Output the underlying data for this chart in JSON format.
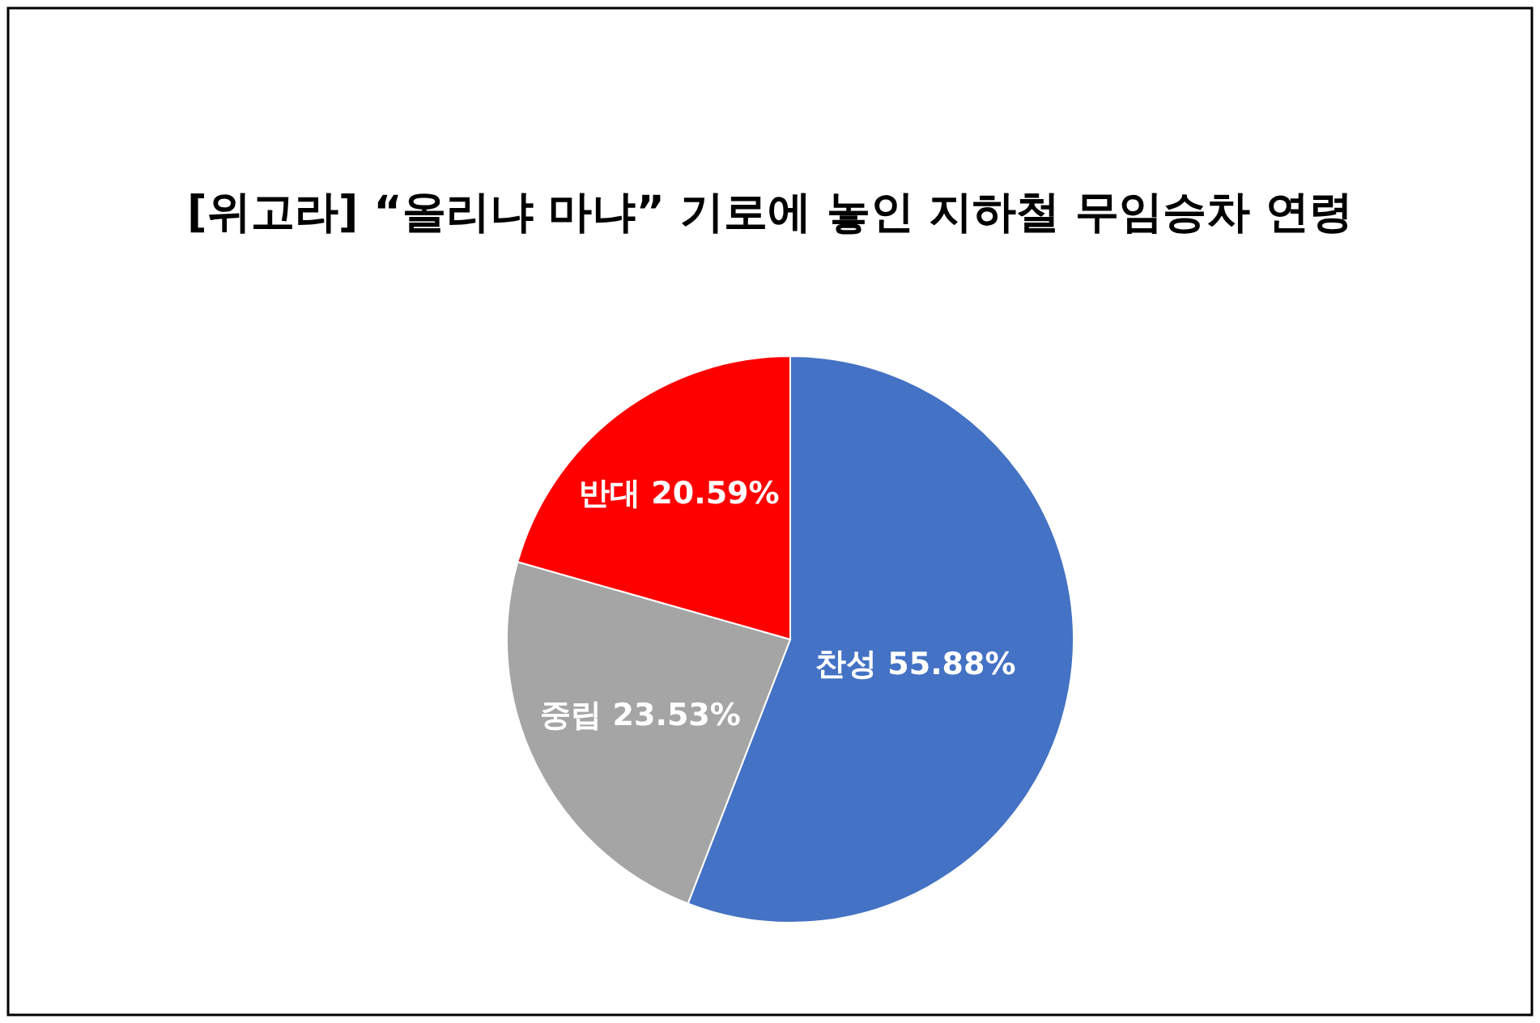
{
  "chart_data": {
    "type": "pie",
    "title": "[위고라]  “올리냐 마냐”  기로에 놓인 지하철 무임승차 연령",
    "categories": [
      "찬성",
      "중립",
      "반대"
    ],
    "values": [
      55.88,
      23.53,
      20.59
    ],
    "value_labels": [
      "55.88%",
      "23.53%",
      "20.59%"
    ],
    "colors": [
      "#4472c4",
      "#a5a5a5",
      "#ff0000"
    ],
    "legend": false
  }
}
